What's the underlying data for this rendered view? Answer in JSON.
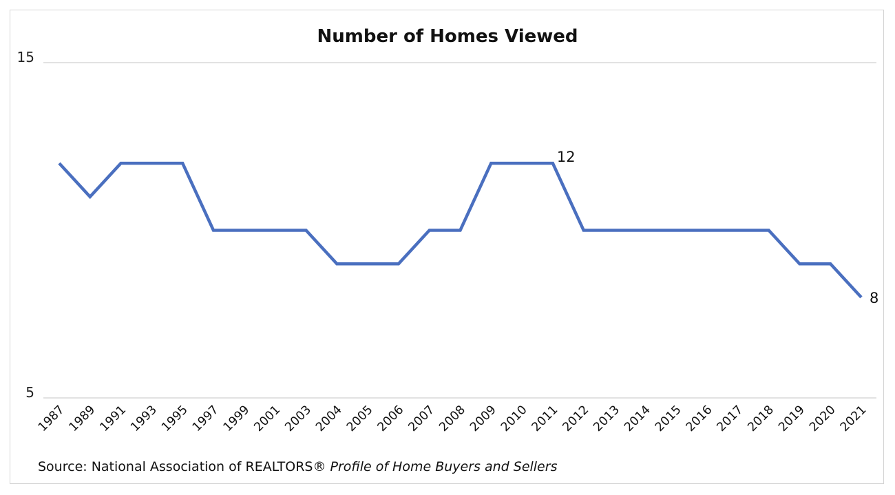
{
  "chart_data": {
    "type": "line",
    "title": "Number of Homes Viewed",
    "xlabel": "",
    "ylabel": "",
    "x": [
      "1987",
      "1989",
      "1991",
      "1993",
      "1995",
      "1997",
      "1999",
      "2001",
      "2003",
      "2004",
      "2005",
      "2006",
      "2007",
      "2008",
      "2009",
      "2010",
      "2011",
      "2012",
      "2013",
      "2014",
      "2015",
      "2016",
      "2017",
      "2018",
      "2019",
      "2020",
      "2021"
    ],
    "series": [
      {
        "values": [
          12,
          11,
          12,
          12,
          12,
          10,
          10,
          10,
          10,
          9,
          9,
          9,
          10,
          10,
          12,
          12,
          12,
          10,
          10,
          10,
          10,
          10,
          10,
          10,
          9,
          9,
          8
        ]
      }
    ],
    "ylim": [
      5,
      15
    ],
    "yticks": [
      "5",
      "15"
    ],
    "annotations": [
      {
        "index": 16,
        "text": "12"
      },
      {
        "index": 26,
        "text": "8"
      }
    ],
    "grid": true,
    "line_color": "#4a6fbf",
    "source_prefix": "Source: National Association of REALTORS®",
    "source_italic": "Profile of Home Buyers and Sellers"
  }
}
